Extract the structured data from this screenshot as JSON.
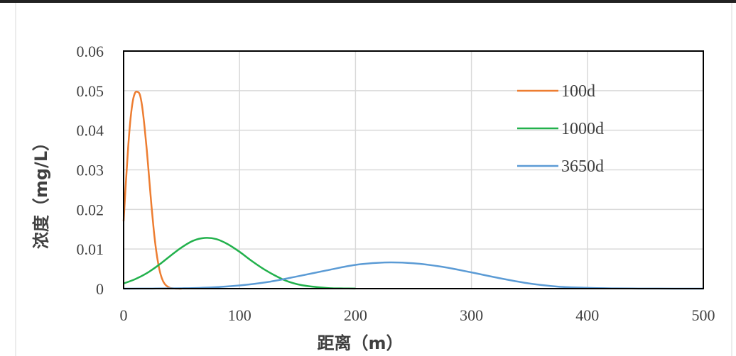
{
  "chart_data": {
    "type": "line",
    "xlabel": "距离（m）",
    "ylabel": "浓度（mg/L）",
    "xlim": [
      0,
      500
    ],
    "ylim": [
      0,
      0.06
    ],
    "x_ticks": [
      "0",
      "100",
      "200",
      "300",
      "400",
      "500"
    ],
    "y_ticks": [
      "0",
      "0.01",
      "0.02",
      "0.03",
      "0.04",
      "0.05",
      "0.06"
    ],
    "grid": true,
    "legend_position": "top-right",
    "series": [
      {
        "name": "100d",
        "color": "#ED7D31",
        "x": [
          0,
          2,
          4,
          6,
          8,
          10,
          12,
          14,
          16,
          18,
          20,
          22,
          24,
          26,
          28,
          30,
          32,
          34,
          36,
          38,
          40,
          42,
          44,
          46,
          48,
          50
        ],
        "y": [
          0.017,
          0.027,
          0.036,
          0.043,
          0.0475,
          0.0495,
          0.0497,
          0.049,
          0.046,
          0.041,
          0.035,
          0.028,
          0.021,
          0.0148,
          0.0098,
          0.0061,
          0.0035,
          0.0019,
          0.001,
          0.0005,
          0.0002,
          0.0001,
          5e-05,
          2e-05,
          1e-05,
          0
        ]
      },
      {
        "name": "1000d",
        "color": "#22B14C",
        "x": [
          0,
          10,
          20,
          30,
          40,
          50,
          60,
          70,
          80,
          90,
          100,
          110,
          120,
          130,
          140,
          150,
          160,
          170,
          180,
          190,
          200
        ],
        "y": [
          0.0013,
          0.0024,
          0.0039,
          0.0059,
          0.0082,
          0.0104,
          0.0121,
          0.0128,
          0.0125,
          0.0112,
          0.0093,
          0.0071,
          0.0051,
          0.0034,
          0.002,
          0.0011,
          0.0006,
          0.0003,
          0.0001,
          5e-05,
          2e-05
        ]
      },
      {
        "name": "3650d",
        "color": "#5B9BD5",
        "x": [
          0,
          25,
          50,
          75,
          100,
          125,
          150,
          175,
          200,
          225,
          250,
          275,
          300,
          325,
          350,
          375,
          400,
          425,
          450,
          475,
          500
        ],
        "y": [
          1e-05,
          3e-05,
          0.0001,
          0.0003,
          0.0008,
          0.0017,
          0.0031,
          0.0046,
          0.006,
          0.0066,
          0.0064,
          0.0055,
          0.0041,
          0.0026,
          0.0013,
          0.0005,
          0.0002,
          6e-05,
          2e-05,
          1e-05,
          0
        ]
      }
    ]
  }
}
